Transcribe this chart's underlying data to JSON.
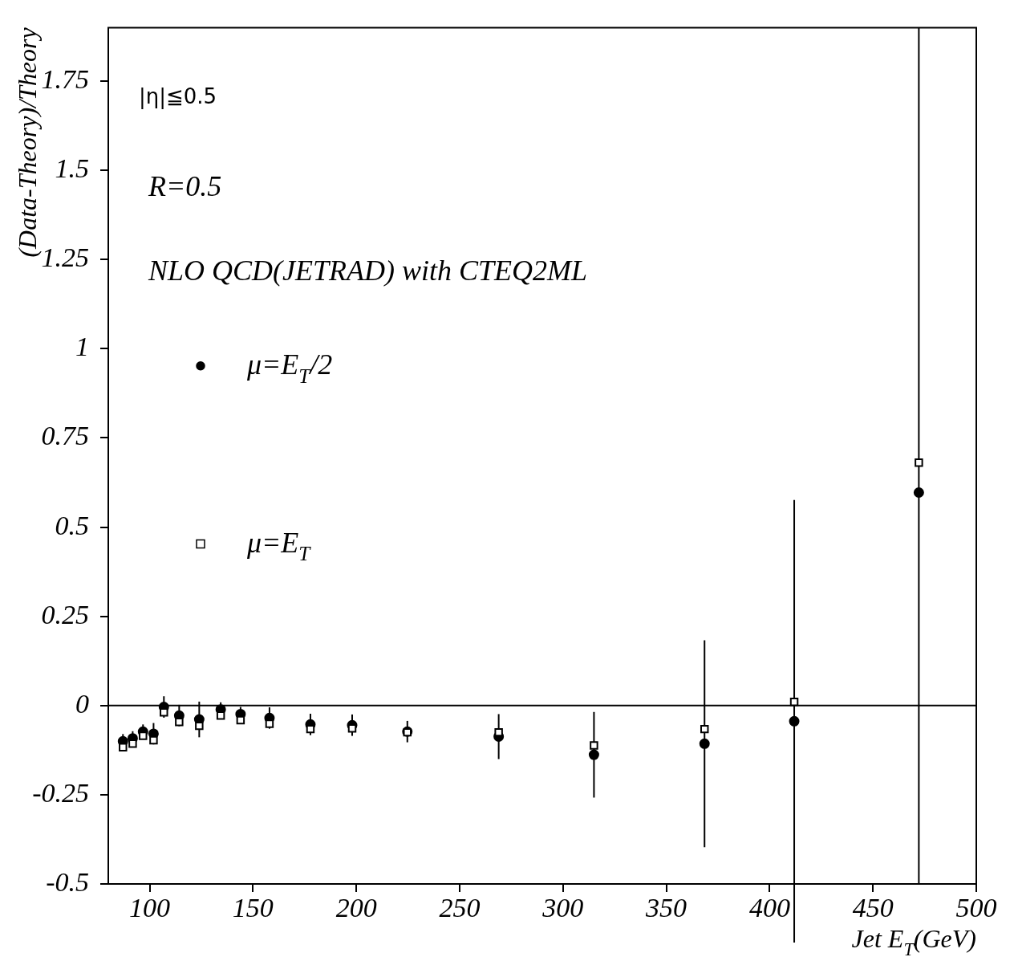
{
  "chart_data": {
    "type": "scatter",
    "xlabel": "Jet E$_{T}$(GeV)",
    "ylabel": "(Data-Theory)/Theory",
    "annotations": [
      "|η|≦0.5",
      "R=0.5",
      "NLO QCD(JETRAD) with CTEQ2ML"
    ],
    "xlim": [
      80,
      500
    ],
    "xticks": [
      100,
      150,
      200,
      250,
      300,
      350,
      400,
      450,
      500
    ],
    "ylim": [
      -0.5,
      1.9
    ],
    "yticks": [
      -0.5,
      -0.25,
      0,
      0.25,
      0.5,
      0.75,
      1,
      1.25,
      1.5,
      1.75
    ],
    "grid": false,
    "legend": "left",
    "ref_lines": [
      {
        "axis": "y",
        "value": 0,
        "color": "#000000"
      }
    ],
    "x": [
      87.1,
      91.8,
      96.8,
      101.9,
      106.9,
      114.3,
      124,
      134.4,
      144,
      158,
      177.8,
      198,
      224.7,
      268.9,
      315,
      368.5,
      411.9,
      472.2
    ],
    "series": [
      {
        "name": "μ=E$_{T}$/2",
        "color": "#000000",
        "marker": "circle",
        "values": [
          -0.1,
          -0.092,
          -0.073,
          -0.079,
          -0.004,
          -0.028,
          -0.039,
          -0.011,
          -0.024,
          -0.035,
          -0.053,
          -0.055,
          -0.073,
          -0.087,
          -0.138,
          -0.107,
          -0.044,
          0.597
        ],
        "errors": [
          0.02,
          0.02,
          0.02,
          0.03,
          0.03,
          0.03,
          0.05,
          0.02,
          0.02,
          0.03,
          0.03,
          0.03,
          0.03,
          0.063,
          0.12,
          0.29,
          0.62,
          [
            -0.5,
            1.9
          ]
        ]
      },
      {
        "name": "μ=E$_{T}$",
        "color": "#000000",
        "marker": "square",
        "values": [
          -0.117,
          -0.107,
          -0.085,
          -0.097,
          -0.019,
          -0.046,
          -0.057,
          -0.028,
          -0.041,
          -0.051,
          -0.066,
          -0.064,
          -0.075,
          -0.075,
          -0.112,
          -0.066,
          0.01,
          0.681
        ]
      }
    ]
  }
}
